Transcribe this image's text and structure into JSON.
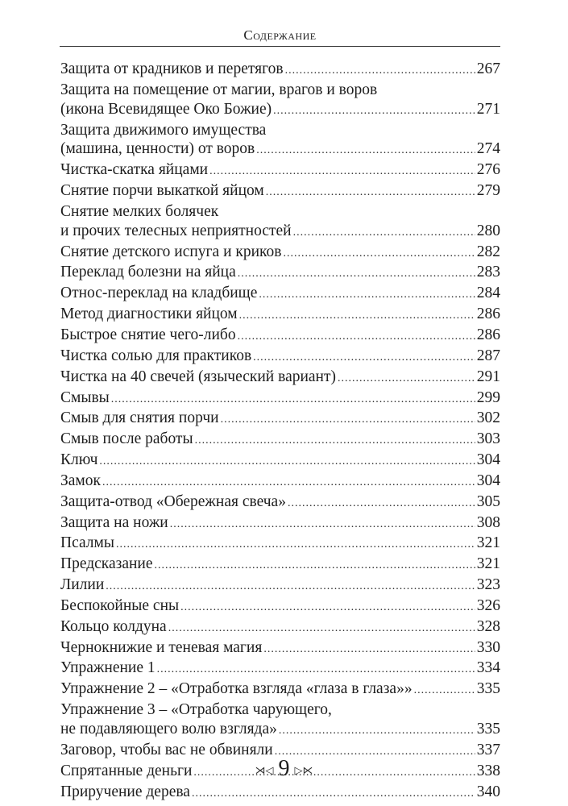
{
  "header": {
    "title": "Содержание"
  },
  "entries": [
    {
      "lines": [
        "Защита от крадников и перетягов"
      ],
      "page": "267"
    },
    {
      "lines": [
        "Защита на помещение от магии, врагов и воров",
        "(икона Всевидящее Око Божие)"
      ],
      "page": "271"
    },
    {
      "lines": [
        "Защита движимого имущества",
        "(машина, ценности) от воров"
      ],
      "page": "274"
    },
    {
      "lines": [
        "Чистка-скатка яйцами"
      ],
      "page": "276"
    },
    {
      "lines": [
        "Снятие порчи выкаткой яйцом"
      ],
      "page": "279"
    },
    {
      "lines": [
        "Снятие мелких болячек",
        "и прочих телесных неприятностей"
      ],
      "page": "280"
    },
    {
      "lines": [
        "Снятие детского испуга и криков"
      ],
      "page": "282"
    },
    {
      "lines": [
        "Переклад болезни на яйца"
      ],
      "page": "283"
    },
    {
      "lines": [
        "Относ-переклад на кладбище"
      ],
      "page": "284"
    },
    {
      "lines": [
        "Метод диагностики яйцом"
      ],
      "page": "286"
    },
    {
      "lines": [
        "Быстрое снятие чего-либо"
      ],
      "page": "286"
    },
    {
      "lines": [
        "Чистка солью для практиков"
      ],
      "page": "287"
    },
    {
      "lines": [
        "Чистка на 40 свечей (языческий вариант)"
      ],
      "page": "291"
    },
    {
      "lines": [
        "Смывы"
      ],
      "page": "299"
    },
    {
      "lines": [
        "Смыв для снятия порчи"
      ],
      "page": "302"
    },
    {
      "lines": [
        "Смыв после работы"
      ],
      "page": "303"
    },
    {
      "lines": [
        "Ключ"
      ],
      "page": "304"
    },
    {
      "lines": [
        "Замок"
      ],
      "page": "304"
    },
    {
      "lines": [
        "Защита-отвод «Обережная свеча»"
      ],
      "page": "305"
    },
    {
      "lines": [
        "Защита на ножи"
      ],
      "page": "308"
    },
    {
      "lines": [
        "Псалмы"
      ],
      "page": "321"
    },
    {
      "lines": [
        "Предсказание"
      ],
      "page": "321"
    },
    {
      "lines": [
        "Лилии"
      ],
      "page": "323"
    },
    {
      "lines": [
        "Беспокойные сны"
      ],
      "page": "326"
    },
    {
      "lines": [
        "Кольцо колдуна"
      ],
      "page": "328"
    },
    {
      "lines": [
        "Чернокнижие и теневая магия"
      ],
      "page": "330"
    },
    {
      "lines": [
        "Упражнение 1"
      ],
      "page": "334"
    },
    {
      "lines": [
        "Упражнение 2 – «Отработка взгляда «глаза в глаза»»"
      ],
      "page": "335"
    },
    {
      "lines": [
        "Упражнение 3 – «Отработка чарующего,",
        "не подавляющего волю взгляда»"
      ],
      "page": "335"
    },
    {
      "lines": [
        "Заговор, чтобы вас не обвиняли"
      ],
      "page": "337"
    },
    {
      "lines": [
        "Спрятанные деньги"
      ],
      "page": "338"
    },
    {
      "lines": [
        "Приручение дерева"
      ],
      "page": "340"
    }
  ],
  "footer": {
    "page_number": "9",
    "ornament_left": "left-ornament-icon",
    "ornament_right": "right-ornament-icon"
  }
}
